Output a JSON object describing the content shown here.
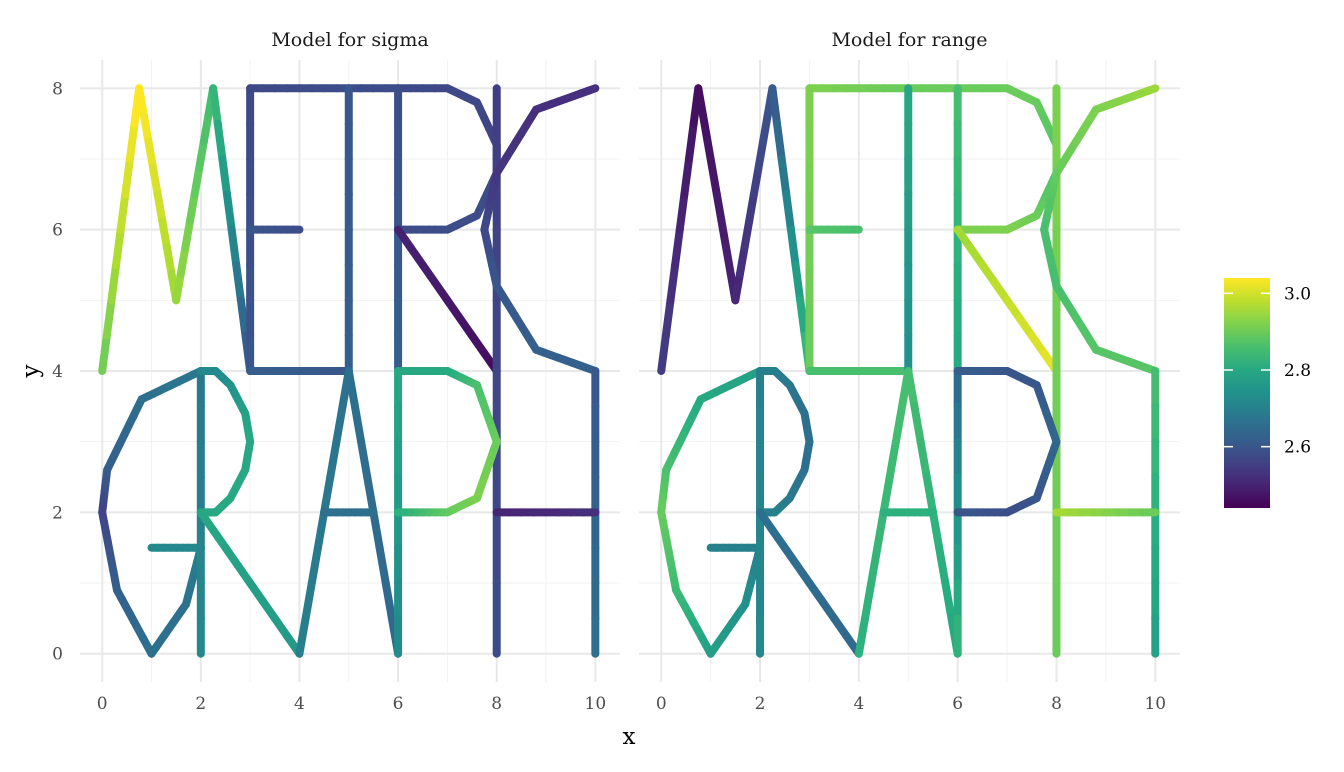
{
  "chart_data": {
    "type": "line",
    "facets": [
      {
        "title": "Model for sigma",
        "edges": [
          {
            "x": [
              0,
              0.75,
              1.5,
              2.25,
              3
            ],
            "y": [
              4,
              8,
              5,
              8,
              4
            ],
            "values": [
              2.9,
              3.05,
              2.95,
              2.85,
              2.6
            ]
          },
          {
            "x": [
              3,
              3,
              5,
              7
            ],
            "y": [
              4,
              8,
              8,
              8
            ],
            "values": [
              2.6,
              2.57,
              2.58,
              2.57
            ]
          },
          {
            "x": [
              3,
              4
            ],
            "y": [
              6,
              6
            ],
            "values": [
              2.6,
              2.58
            ]
          },
          {
            "x": [
              3,
              5
            ],
            "y": [
              4,
              4
            ],
            "values": [
              2.62,
              2.6
            ]
          },
          {
            "x": [
              5,
              5
            ],
            "y": [
              8,
              4
            ],
            "values": [
              2.6,
              2.62
            ]
          },
          {
            "x": [
              6,
              6
            ],
            "y": [
              8,
              4
            ],
            "values": [
              2.58,
              2.62
            ]
          },
          {
            "x": [
              7,
              7.6,
              8,
              8,
              7.6,
              7,
              6
            ],
            "y": [
              8,
              7.8,
              7.2,
              6.8,
              6.2,
              6,
              6
            ],
            "values": [
              2.57,
              2.57,
              2.56,
              2.58,
              2.58,
              2.58,
              2.58
            ]
          },
          {
            "x": [
              6,
              8
            ],
            "y": [
              6,
              4
            ],
            "values": [
              2.5,
              2.46
            ]
          },
          {
            "x": [
              8,
              8
            ],
            "y": [
              8,
              0
            ],
            "values": [
              2.55,
              2.58
            ]
          },
          {
            "x": [
              10,
              8.8,
              8,
              7.75,
              8,
              8.8,
              10
            ],
            "y": [
              8,
              7.7,
              6.8,
              6,
              5.2,
              4.3,
              4
            ],
            "values": [
              2.52,
              2.52,
              2.53,
              2.57,
              2.6,
              2.62,
              2.62
            ]
          },
          {
            "x": [
              10,
              10
            ],
            "y": [
              4,
              0
            ],
            "values": [
              2.6,
              2.66
            ]
          },
          {
            "x": [
              8,
              10
            ],
            "y": [
              2,
              2
            ],
            "values": [
              2.5,
              2.52
            ]
          },
          {
            "x": [
              2,
              0.8,
              0.1,
              0,
              0.3,
              1,
              1.7,
              2
            ],
            "y": [
              4,
              3.6,
              2.6,
              2,
              0.9,
              0,
              0.7,
              1.5
            ],
            "values": [
              2.68,
              2.66,
              2.62,
              2.56,
              2.62,
              2.66,
              2.66,
              2.7
            ]
          },
          {
            "x": [
              1,
              2
            ],
            "y": [
              1.5,
              1.5
            ],
            "values": [
              2.72,
              2.72
            ]
          },
          {
            "x": [
              2,
              2
            ],
            "y": [
              4,
              0
            ],
            "values": [
              2.68,
              2.72
            ]
          },
          {
            "x": [
              2,
              2.3,
              2.6,
              2.9,
              3,
              2.9,
              2.6,
              2.3,
              2
            ],
            "y": [
              4,
              4,
              3.8,
              3.4,
              3,
              2.6,
              2.2,
              2,
              2
            ],
            "values": [
              2.72,
              2.72,
              2.74,
              2.78,
              2.8,
              2.8,
              2.8,
              2.8,
              2.8
            ]
          },
          {
            "x": [
              2,
              4
            ],
            "y": [
              2,
              0
            ],
            "values": [
              2.8,
              2.76
            ]
          },
          {
            "x": [
              4,
              5,
              6
            ],
            "y": [
              0,
              4,
              0
            ],
            "values": [
              2.7,
              2.66,
              2.64
            ]
          },
          {
            "x": [
              4.5,
              5.5
            ],
            "y": [
              2,
              2
            ],
            "values": [
              2.66,
              2.66
            ]
          },
          {
            "x": [
              6,
              6
            ],
            "y": [
              4,
              0
            ],
            "values": [
              2.8,
              2.72
            ]
          },
          {
            "x": [
              6,
              7,
              7.6,
              8,
              7.6,
              7,
              6
            ],
            "y": [
              4,
              4,
              3.8,
              3,
              2.2,
              2,
              2
            ],
            "values": [
              2.8,
              2.8,
              2.86,
              2.9,
              2.92,
              2.9,
              2.82
            ]
          }
        ]
      },
      {
        "title": "Model for range",
        "edges": [
          {
            "x": [
              0,
              0.75,
              1.5,
              2.25,
              3
            ],
            "y": [
              4,
              8,
              5,
              8,
              4
            ],
            "values": [
              2.55,
              2.46,
              2.5,
              2.6,
              2.85
            ]
          },
          {
            "x": [
              3,
              3,
              5,
              7
            ],
            "y": [
              4,
              8,
              8,
              8
            ],
            "values": [
              2.9,
              2.92,
              2.9,
              2.9
            ]
          },
          {
            "x": [
              3,
              4
            ],
            "y": [
              6,
              6
            ],
            "values": [
              2.88,
              2.86
            ]
          },
          {
            "x": [
              3,
              5
            ],
            "y": [
              4,
              4
            ],
            "values": [
              2.86,
              2.86
            ]
          },
          {
            "x": [
              5,
              5
            ],
            "y": [
              8,
              4
            ],
            "values": [
              2.8,
              2.74
            ]
          },
          {
            "x": [
              6,
              6
            ],
            "y": [
              8,
              4
            ],
            "values": [
              2.86,
              2.8
            ]
          },
          {
            "x": [
              7,
              7.6,
              8,
              8,
              7.6,
              7,
              6
            ],
            "y": [
              8,
              7.8,
              7.2,
              6.8,
              6.2,
              6,
              6
            ],
            "values": [
              2.9,
              2.9,
              2.88,
              2.86,
              2.9,
              2.92,
              2.92
            ]
          },
          {
            "x": [
              6,
              8
            ],
            "y": [
              6,
              4
            ],
            "values": [
              2.95,
              3.02
            ]
          },
          {
            "x": [
              8,
              8
            ],
            "y": [
              8,
              0
            ],
            "values": [
              2.92,
              2.9
            ]
          },
          {
            "x": [
              10,
              8.8,
              8,
              7.75,
              8,
              8.8,
              10
            ],
            "y": [
              8,
              7.7,
              6.8,
              6,
              5.2,
              4.3,
              4
            ],
            "values": [
              2.95,
              2.92,
              2.9,
              2.86,
              2.86,
              2.88,
              2.88
            ]
          },
          {
            "x": [
              10,
              10
            ],
            "y": [
              4,
              0
            ],
            "values": [
              2.86,
              2.78
            ]
          },
          {
            "x": [
              8,
              10
            ],
            "y": [
              2,
              2
            ],
            "values": [
              2.96,
              2.9
            ]
          },
          {
            "x": [
              2,
              0.8,
              0.1,
              0,
              0.3,
              1,
              1.7,
              2
            ],
            "y": [
              4,
              3.6,
              2.6,
              2,
              0.9,
              0,
              0.7,
              1.5
            ],
            "values": [
              2.78,
              2.8,
              2.86,
              2.9,
              2.85,
              2.78,
              2.74,
              2.7
            ]
          },
          {
            "x": [
              1,
              2
            ],
            "y": [
              1.5,
              1.5
            ],
            "values": [
              2.7,
              2.7
            ]
          },
          {
            "x": [
              2,
              2
            ],
            "y": [
              4,
              0
            ],
            "values": [
              2.7,
              2.72
            ]
          },
          {
            "x": [
              2,
              2.3,
              2.6,
              2.9,
              3,
              2.9,
              2.6,
              2.3,
              2
            ],
            "y": [
              4,
              4,
              3.8,
              3.4,
              3,
              2.6,
              2.2,
              2,
              2
            ],
            "values": [
              2.7,
              2.7,
              2.68,
              2.66,
              2.66,
              2.66,
              2.68,
              2.7,
              2.7
            ]
          },
          {
            "x": [
              2,
              4
            ],
            "y": [
              2,
              0
            ],
            "values": [
              2.66,
              2.64
            ]
          },
          {
            "x": [
              4,
              5,
              6
            ],
            "y": [
              0,
              4,
              0
            ],
            "values": [
              2.82,
              2.86,
              2.8
            ]
          },
          {
            "x": [
              4.5,
              5.5
            ],
            "y": [
              2,
              2
            ],
            "values": [
              2.82,
              2.82
            ]
          },
          {
            "x": [
              6,
              6
            ],
            "y": [
              4,
              0
            ],
            "values": [
              2.64,
              2.84
            ]
          },
          {
            "x": [
              6,
              7,
              7.6,
              8,
              7.6,
              7,
              6
            ],
            "y": [
              4,
              4,
              3.8,
              3,
              2.2,
              2,
              2
            ],
            "values": [
              2.62,
              2.6,
              2.6,
              2.64,
              2.6,
              2.58,
              2.6
            ]
          }
        ]
      }
    ],
    "xlabel": "x",
    "ylabel": "y",
    "xlim": [
      -0.45,
      10.5
    ],
    "ylim": [
      -0.4,
      8.4
    ],
    "x_ticks": [
      "0",
      "2",
      "4",
      "6",
      "8",
      "10"
    ],
    "y_ticks": [
      "0",
      "2",
      "4",
      "6",
      "8"
    ],
    "grid": true,
    "legend": {
      "position": "right",
      "range": [
        2.44,
        3.04
      ],
      "ticks": [
        "2.6",
        "2.8",
        "3.0"
      ],
      "colormap": "viridis"
    }
  }
}
